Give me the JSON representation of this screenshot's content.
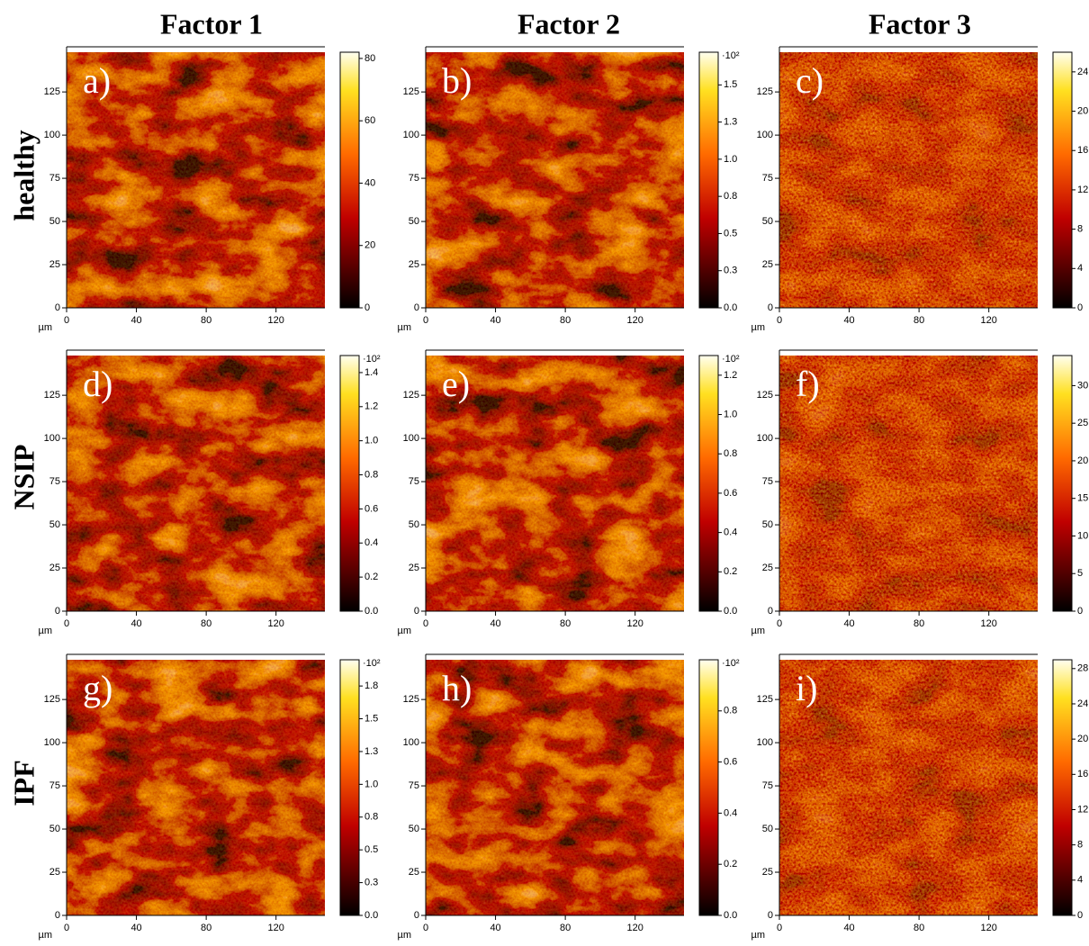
{
  "column_titles": [
    "Factor 1",
    "Factor 2",
    "Factor 3"
  ],
  "row_titles": [
    "healthy",
    "NSIP",
    "IPF"
  ],
  "chart_data": [
    {
      "type": "heatmap",
      "label": "a)",
      "x_unit": "µm",
      "xlim": [
        0,
        148
      ],
      "ylim": [
        0,
        148
      ],
      "xticks": [
        0,
        40,
        80,
        120
      ],
      "yticks": [
        0,
        25,
        50,
        75,
        100,
        125
      ],
      "colorbar": {
        "lim": [
          0,
          82
        ],
        "ticks": [
          0,
          20,
          40,
          60,
          80
        ]
      }
    },
    {
      "type": "heatmap",
      "label": "b)",
      "x_unit": "µm",
      "xlim": [
        0,
        148
      ],
      "ylim": [
        0,
        148
      ],
      "xticks": [
        0,
        40,
        80,
        120
      ],
      "yticks": [
        0,
        25,
        50,
        75,
        100,
        125
      ],
      "colorbar": {
        "lim": [
          0,
          1.72
        ],
        "multiplier": "·10²",
        "ticks": [
          {
            "value": 0,
            "label": "0.0"
          },
          {
            "value": 0.25,
            "label": "0.3"
          },
          0.5,
          {
            "value": 0.75,
            "label": "0.8"
          },
          {
            "value": 1,
            "label": "1.0"
          },
          {
            "value": 1.25,
            "label": "1.3"
          },
          1.5
        ]
      }
    },
    {
      "type": "heatmap",
      "label": "c)",
      "x_unit": "µm",
      "xlim": [
        0,
        148
      ],
      "ylim": [
        0,
        148
      ],
      "xticks": [
        0,
        40,
        80,
        120
      ],
      "yticks": [
        0,
        25,
        50,
        75,
        100,
        125
      ],
      "colorbar": {
        "lim": [
          0,
          26
        ],
        "ticks": [
          0,
          4,
          8,
          12,
          16,
          20,
          24
        ]
      }
    },
    {
      "type": "heatmap",
      "label": "d)",
      "x_unit": "µm",
      "xlim": [
        0,
        148
      ],
      "ylim": [
        0,
        148
      ],
      "xticks": [
        0,
        40,
        80,
        120
      ],
      "yticks": [
        0,
        25,
        50,
        75,
        100,
        125
      ],
      "colorbar": {
        "lim": [
          0,
          1.5
        ],
        "multiplier": "·10²",
        "ticks": [
          {
            "value": 0,
            "label": "0.0"
          },
          0.2,
          0.4,
          0.6,
          0.8,
          {
            "value": 1,
            "label": "1.0"
          },
          1.2,
          1.4
        ]
      }
    },
    {
      "type": "heatmap",
      "label": "e)",
      "x_unit": "µm",
      "xlim": [
        0,
        148
      ],
      "ylim": [
        0,
        148
      ],
      "xticks": [
        0,
        40,
        80,
        120
      ],
      "yticks": [
        0,
        25,
        50,
        75,
        100,
        125
      ],
      "colorbar": {
        "lim": [
          0,
          1.3
        ],
        "multiplier": "·10²",
        "ticks": [
          {
            "value": 0,
            "label": "0.0"
          },
          0.2,
          0.4,
          0.6,
          0.8,
          {
            "value": 1,
            "label": "1.0"
          },
          1.2
        ]
      }
    },
    {
      "type": "heatmap",
      "label": "f)",
      "x_unit": "µm",
      "xlim": [
        0,
        148
      ],
      "ylim": [
        0,
        148
      ],
      "xticks": [
        0,
        40,
        80,
        120
      ],
      "yticks": [
        0,
        25,
        50,
        75,
        100,
        125
      ],
      "colorbar": {
        "lim": [
          0,
          34
        ],
        "ticks": [
          0,
          5,
          10,
          15,
          20,
          25,
          30
        ]
      }
    },
    {
      "type": "heatmap",
      "label": "g)",
      "x_unit": "µm",
      "xlim": [
        0,
        148
      ],
      "ylim": [
        0,
        148
      ],
      "xticks": [
        0,
        40,
        80,
        120
      ],
      "yticks": [
        0,
        25,
        50,
        75,
        100,
        125
      ],
      "colorbar": {
        "lim": [
          0,
          1.95
        ],
        "multiplier": "·10²",
        "ticks": [
          {
            "value": 0,
            "label": "0.0"
          },
          {
            "value": 0.25,
            "label": "0.3"
          },
          0.5,
          {
            "value": 0.75,
            "label": "0.8"
          },
          {
            "value": 1,
            "label": "1.0"
          },
          {
            "value": 1.25,
            "label": "1.3"
          },
          1.5,
          {
            "value": 1.75,
            "label": "1.8"
          }
        ]
      }
    },
    {
      "type": "heatmap",
      "label": "h)",
      "x_unit": "µm",
      "xlim": [
        0,
        148
      ],
      "ylim": [
        0,
        148
      ],
      "xticks": [
        0,
        40,
        80,
        120
      ],
      "yticks": [
        0,
        25,
        50,
        75,
        100,
        125
      ],
      "colorbar": {
        "lim": [
          0,
          1.0
        ],
        "multiplier": "·10²",
        "ticks": [
          {
            "value": 0,
            "label": "0.0"
          },
          0.2,
          0.4,
          0.6,
          0.8
        ]
      }
    },
    {
      "type": "heatmap",
      "label": "i)",
      "x_unit": "µm",
      "xlim": [
        0,
        148
      ],
      "ylim": [
        0,
        148
      ],
      "xticks": [
        0,
        40,
        80,
        120
      ],
      "yticks": [
        0,
        25,
        50,
        75,
        100,
        125
      ],
      "colorbar": {
        "lim": [
          0,
          29
        ],
        "ticks": [
          0,
          4,
          8,
          12,
          16,
          20,
          24,
          28
        ]
      }
    }
  ]
}
